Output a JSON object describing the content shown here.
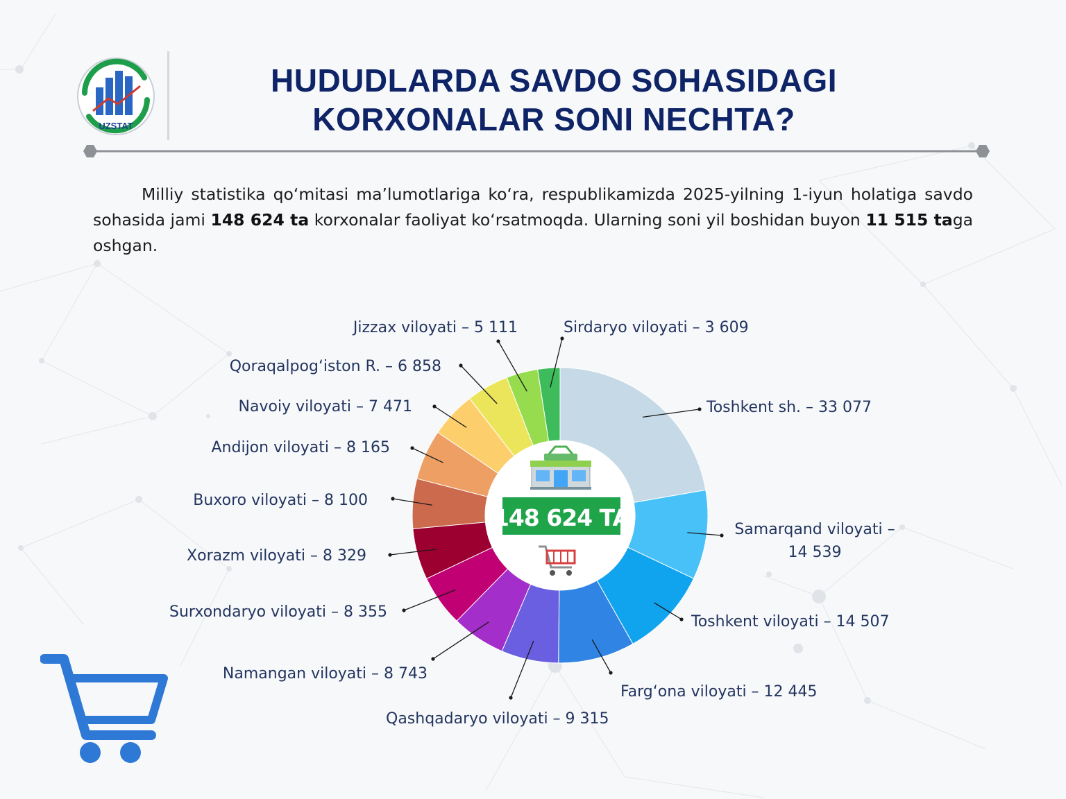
{
  "header": {
    "logo_text": "UZSTAT",
    "title_line1": "HUDUDLARDA SAVDO SOHASIDAGI",
    "title_line2": "KORXONALAR SONI NECHTA?"
  },
  "intro": {
    "part1": "Milliy statistika qo‘mitasi ma’lumotlariga ko‘ra, respublikamizda 2025-yilning 1-iyun holatiga savdo sohasida jami ",
    "bold1": "148 624 ta",
    "part2": " korxonalar faoliyat ko‘rsatmoqda. Ularning soni yil boshidan buyon ",
    "bold2": "11 515 ta",
    "part3": "ga oshgan."
  },
  "chart_data": {
    "type": "pie",
    "variant": "donut",
    "center_label": "148 624 TA",
    "total": 148624,
    "slices": [
      {
        "label": "Toshkent sh. – 33 077",
        "value": 33077,
        "color": "#c5d9e6"
      },
      {
        "label": "Samarqand viloyati – 14 539",
        "value": 14539,
        "color": "#47c1f7"
      },
      {
        "label": "Toshkent viloyati – 14 507",
        "value": 14507,
        "color": "#10a3ee"
      },
      {
        "label": "Farg‘ona viloyati – 12 445",
        "value": 12445,
        "color": "#2f84e4"
      },
      {
        "label": "Qashqadaryo viloyati – 9 315",
        "value": 9315,
        "color": "#6a5fe0"
      },
      {
        "label": "Namangan viloyati – 8 743",
        "value": 8743,
        "color": "#a32ec9"
      },
      {
        "label": "Surxondaryo viloyati – 8 355",
        "value": 8355,
        "color": "#c00073"
      },
      {
        "label": "Xorazm viloyati – 8 329",
        "value": 8329,
        "color": "#9b0031"
      },
      {
        "label": "Buxoro viloyati – 8 100",
        "value": 8100,
        "color": "#cc6a4e"
      },
      {
        "label": "Andijon viloyati – 8 165",
        "value": 8165,
        "color": "#eea064"
      },
      {
        "label": "Navoiy viloyati – 7 471",
        "value": 7471,
        "color": "#fdcf6c"
      },
      {
        "label": "Qoraqalpog‘iston R. – 6 858",
        "value": 6858,
        "color": "#ebe55c"
      },
      {
        "label": "Jizzax viloyati – 5 111",
        "value": 5111,
        "color": "#97dc4e"
      },
      {
        "label": "Sirdaryo viloyati – 3 609",
        "value": 3609,
        "color": "#3ebb5a"
      }
    ]
  },
  "colors": {
    "title": "#0e2466",
    "label_text": "#23355f",
    "center_badge": "#1fa44a",
    "cart": "#2e79d6"
  },
  "icons": {
    "store": "store-icon",
    "cart_small": "shopping-cart-icon",
    "cart_large": "shopping-cart-large-icon"
  }
}
